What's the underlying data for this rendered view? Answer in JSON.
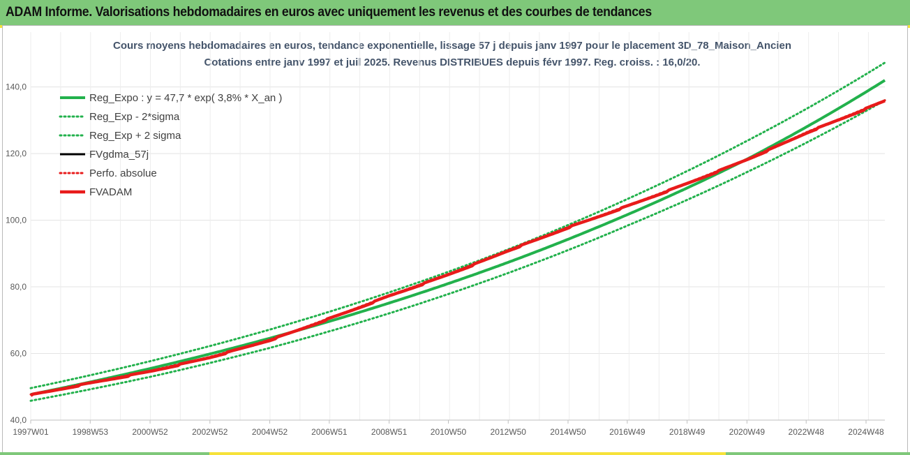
{
  "header": {
    "title": "ADAM Informe. Valorisations hebdomadaires en euros avec uniquement les revenus et des courbes de tendances"
  },
  "chart_data": {
    "type": "line",
    "title": "Cours moyens hebdomadaires en euros, tendance exponentielle, lissage 57 j depuis janv 1997 pour le placement 3D_78_Maison_Ancien",
    "subtitle": "Cotations entre janv 1997 et juil 2025. Revenus DISTRIBUES depuis févr 1997. Reg. croiss. : 16,0/20.",
    "xlabel": "",
    "ylabel": "",
    "x_tick_labels": [
      "1997W01",
      "1998W53",
      "2000W52",
      "2002W52",
      "2004W52",
      "2006W51",
      "2008W51",
      "2010W50",
      "2012W50",
      "2014W50",
      "2016W49",
      "2018W49",
      "2020W49",
      "2022W48",
      "2024W48"
    ],
    "x_tick_years": [
      1997.0,
      1998.99,
      2000.99,
      2002.99,
      2004.99,
      2006.98,
      2008.98,
      2010.96,
      2012.96,
      2014.96,
      2016.94,
      2018.94,
      2020.94,
      2022.92,
      2024.92
    ],
    "x_range_years": [
      1997.0,
      2025.55
    ],
    "ylim": [
      40,
      146
    ],
    "y_ticks": [
      40,
      60,
      80,
      100,
      120,
      140
    ],
    "y_tick_labels": [
      "40,0",
      "60,0",
      "80,0",
      "100,0",
      "120,0",
      "140,0"
    ],
    "grid": true,
    "legend_position": "top-left",
    "series": [
      {
        "name": "Reg_Expo : y = 47,7 * exp( 3,8% *  X_an )",
        "color": "#22b14c",
        "style": "solid",
        "x": [
          1997.0,
          2001.0,
          2005.0,
          2009.0,
          2013.0,
          2017.0,
          2021.0,
          2025.55
        ],
        "values": [
          47.7,
          55.5,
          64.6,
          75.2,
          87.5,
          101.9,
          118.6,
          142.0
        ]
      },
      {
        "name": "Reg_Exp - 2*sigma",
        "color": "#22b14c",
        "style": "dotted",
        "x": [
          1997.0,
          2001.0,
          2005.0,
          2009.0,
          2013.0,
          2017.0,
          2021.0,
          2025.55
        ],
        "values": [
          45.8,
          53.0,
          61.7,
          72.1,
          84.3,
          98.6,
          114.7,
          136.0
        ]
      },
      {
        "name": "Reg_Exp + 2 sigma",
        "color": "#22b14c",
        "style": "dotted",
        "x": [
          1997.0,
          2001.0,
          2005.0,
          2009.0,
          2013.0,
          2017.0,
          2021.0,
          2025.55
        ],
        "values": [
          49.6,
          57.7,
          67.2,
          78.4,
          91.4,
          106.6,
          124.1,
          147.3
        ]
      },
      {
        "name": "FVgdma_57j",
        "color": "#000000",
        "style": "solid",
        "x": [
          1997.0,
          1999.0,
          2001.0,
          2003.0,
          2005.0,
          2007.0,
          2009.0,
          2011.0,
          2013.0,
          2015.0,
          2017.0,
          2019.0,
          2021.0,
          2023.0,
          2025.55
        ],
        "values": [
          47.7,
          51.3,
          54.8,
          59.0,
          64.2,
          70.7,
          77.5,
          84.0,
          91.2,
          98.1,
          104.6,
          111.4,
          118.6,
          126.7,
          136.0
        ]
      },
      {
        "name": "Perfo. absolue",
        "color": "#e81b1b",
        "style": "dotted",
        "x": [
          1997.0,
          1999.0,
          2001.0,
          2003.0,
          2005.0,
          2007.0,
          2009.0,
          2011.0,
          2013.0,
          2015.0,
          2017.0,
          2019.0,
          2021.0,
          2023.0,
          2025.55
        ],
        "values": [
          47.7,
          51.3,
          54.8,
          59.0,
          64.2,
          70.7,
          77.5,
          84.0,
          91.2,
          98.1,
          104.6,
          111.4,
          118.6,
          126.7,
          136.0
        ]
      },
      {
        "name": "FVADAM",
        "color": "#e81b1b",
        "style": "thick",
        "x": [
          1997.0,
          1999.0,
          2001.0,
          2003.0,
          2005.0,
          2007.0,
          2009.0,
          2011.0,
          2013.0,
          2015.0,
          2017.0,
          2019.0,
          2021.0,
          2023.0,
          2025.55
        ],
        "values": [
          47.7,
          51.3,
          54.8,
          59.0,
          64.2,
          70.7,
          77.5,
          84.0,
          91.2,
          98.1,
          104.6,
          111.4,
          118.6,
          126.7,
          136.0
        ]
      }
    ]
  }
}
